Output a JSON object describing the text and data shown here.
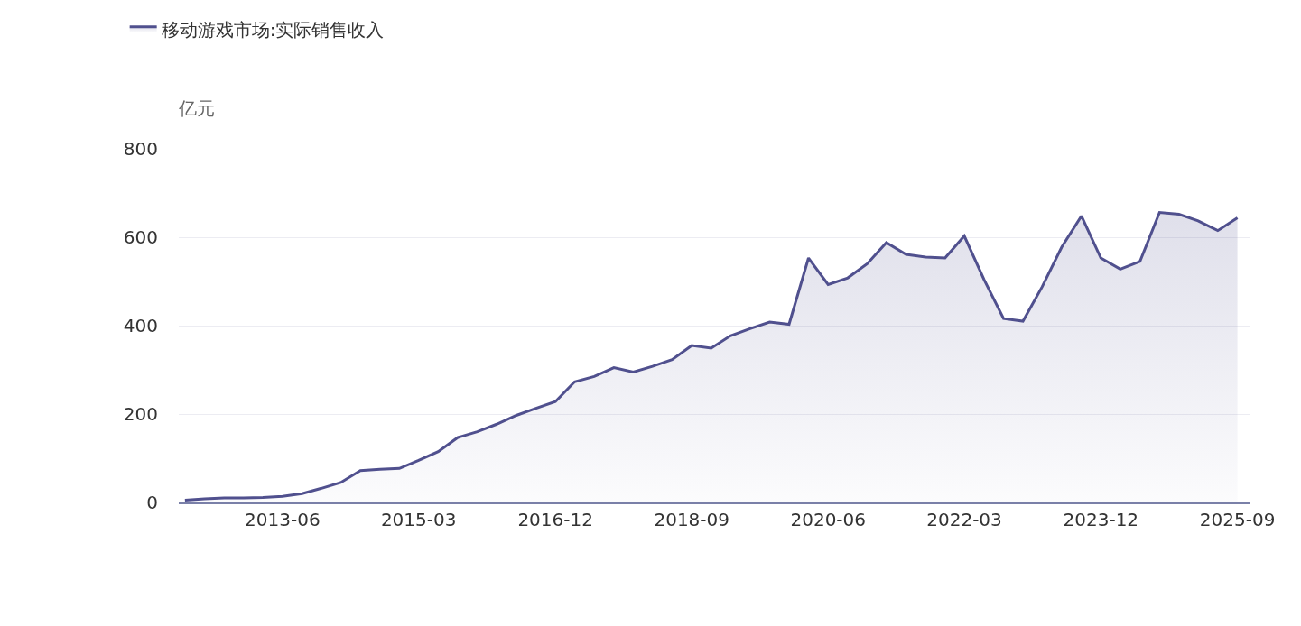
{
  "chart_data": {
    "type": "area",
    "ylabel": "亿元",
    "legend": "top left",
    "grid": "y",
    "x": [
      "2012-03",
      "2012-06",
      "2012-09",
      "2012-12",
      "2013-03",
      "2013-06",
      "2013-09",
      "2013-12",
      "2014-03",
      "2014-06",
      "2014-09",
      "2014-12",
      "2015-03",
      "2015-06",
      "2015-09",
      "2015-12",
      "2016-03",
      "2016-06",
      "2016-09",
      "2016-12",
      "2017-03",
      "2017-06",
      "2017-09",
      "2017-12",
      "2018-03",
      "2018-06",
      "2018-09",
      "2018-12",
      "2019-03",
      "2019-06",
      "2019-09",
      "2019-12",
      "2020-03",
      "2020-06",
      "2020-09",
      "2020-12",
      "2021-03",
      "2021-06",
      "2021-09",
      "2021-12",
      "2022-03",
      "2022-06",
      "2022-09",
      "2022-12",
      "2023-03",
      "2023-06",
      "2023-09",
      "2023-12",
      "2024-03",
      "2024-06",
      "2024-09",
      "2024-12",
      "2025-03",
      "2025-06",
      "2025-09"
    ],
    "series": [
      {
        "name": "移动游戏市场:实际销售收入",
        "color": "#50508e",
        "values": [
          5,
          8,
          10,
          10,
          11,
          14,
          20,
          32,
          45,
          72,
          75,
          77,
          95,
          115,
          147,
          160,
          177,
          197,
          213,
          228,
          273,
          285,
          305,
          295,
          308,
          323,
          355,
          349,
          377,
          393,
          408,
          403,
          553,
          493,
          508,
          540,
          588,
          561,
          555,
          553,
          603,
          505,
          416,
          410,
          488,
          578,
          648,
          553,
          528,
          545,
          656,
          652,
          637,
          615,
          644
        ]
      }
    ],
    "xlim": [
      "2012-02",
      "2025-11"
    ],
    "xticks": [
      {
        "value": "2013-06",
        "label": "2013-06"
      },
      {
        "value": "2015-03",
        "label": "2015-03"
      },
      {
        "value": "2016-12",
        "label": "2016-12"
      },
      {
        "value": "2018-09",
        "label": "2018-09"
      },
      {
        "value": "2020-06",
        "label": "2020-06"
      },
      {
        "value": "2022-03",
        "label": "2022-03"
      },
      {
        "value": "2023-12",
        "label": "2023-12"
      },
      {
        "value": "2025-09",
        "label": "2025-09"
      }
    ],
    "ylim": [
      0,
      800
    ],
    "yticks": [
      0,
      200,
      400,
      600,
      800
    ]
  }
}
